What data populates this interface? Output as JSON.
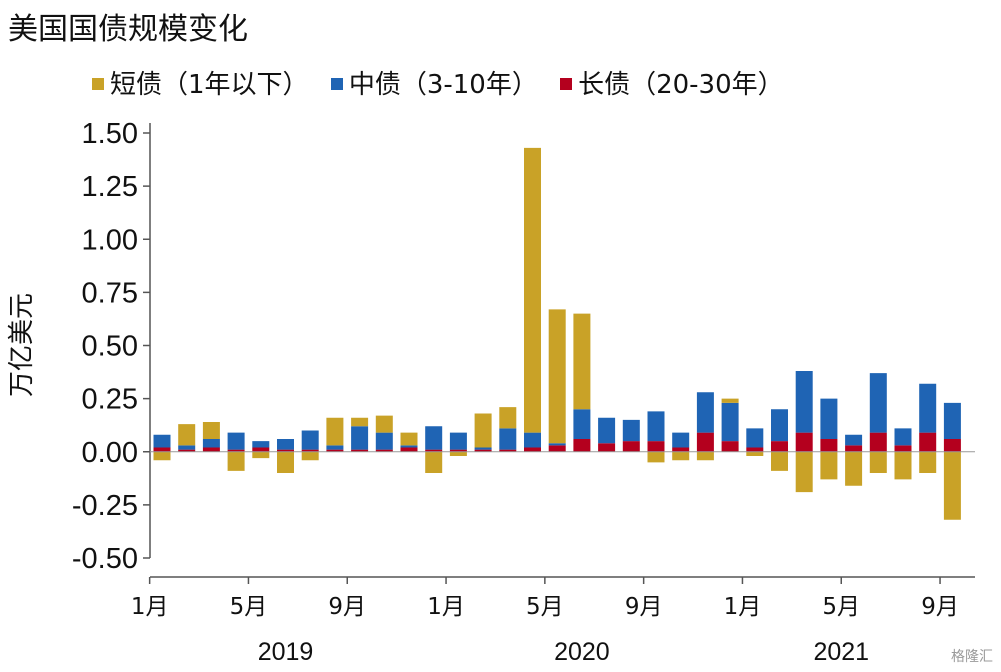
{
  "title": "美国国债规模变化",
  "watermark": "格隆汇",
  "chart_data": {
    "type": "bar",
    "stacked": true,
    "ylabel": "万亿美元",
    "ylim": [
      -0.5,
      1.5
    ],
    "yticks": [
      "1.50",
      "1.25",
      "1.00",
      "0.75",
      "0.50",
      "0.25",
      "0.00",
      "-0.25",
      "-0.50"
    ],
    "ytick_values": [
      1.5,
      1.25,
      1.0,
      0.75,
      0.5,
      0.25,
      0.0,
      -0.25,
      -0.5
    ],
    "categories": [
      "2019-01",
      "2019-02",
      "2019-03",
      "2019-04",
      "2019-05",
      "2019-06",
      "2019-07",
      "2019-08",
      "2019-09",
      "2019-10",
      "2019-11",
      "2019-12",
      "2020-01",
      "2020-02",
      "2020-03",
      "2020-04",
      "2020-05",
      "2020-06",
      "2020-07",
      "2020-08",
      "2020-09",
      "2020-10",
      "2020-11",
      "2020-12",
      "2021-01",
      "2021-02",
      "2021-03",
      "2021-04",
      "2021-05",
      "2021-06",
      "2021-07",
      "2021-08",
      "2021-09"
    ],
    "xtick_labels": [
      {
        "index": 0,
        "label": "1月"
      },
      {
        "index": 4,
        "label": "5月"
      },
      {
        "index": 8,
        "label": "9月"
      },
      {
        "index": 12,
        "label": "1月"
      },
      {
        "index": 16,
        "label": "5月"
      },
      {
        "index": 20,
        "label": "9月"
      },
      {
        "index": 24,
        "label": "1月"
      },
      {
        "index": 28,
        "label": "5月"
      },
      {
        "index": 32,
        "label": "9月"
      }
    ],
    "years": [
      {
        "label": "2019",
        "center_index": 5.5
      },
      {
        "label": "2020",
        "center_index": 17.5
      },
      {
        "label": "2021",
        "center_index": 28
      }
    ],
    "series": [
      {
        "name": "长债（20-30年）",
        "color": "#B4001E",
        "values": [
          0.02,
          0.01,
          0.02,
          0.01,
          0.02,
          0.01,
          0.01,
          0.01,
          0.01,
          0.01,
          0.02,
          0.01,
          0.01,
          0.01,
          0.01,
          0.02,
          0.03,
          0.06,
          0.04,
          0.05,
          0.05,
          0.02,
          0.09,
          0.05,
          0.02,
          0.05,
          0.09,
          0.06,
          0.03,
          0.09,
          0.03,
          0.09,
          0.06
        ]
      },
      {
        "name": "中债（3-10年）",
        "color": "#1F64B4",
        "values": [
          0.06,
          0.02,
          0.04,
          0.08,
          0.03,
          0.05,
          0.09,
          0.02,
          0.11,
          0.08,
          0.01,
          0.11,
          0.08,
          0.01,
          0.1,
          0.07,
          0.01,
          0.14,
          0.12,
          0.1,
          0.14,
          0.07,
          0.19,
          0.18,
          0.09,
          0.15,
          0.29,
          0.19,
          0.05,
          0.28,
          0.08,
          0.23,
          0.17
        ]
      },
      {
        "name": "短债（1年以下）",
        "color": "#C9A227",
        "values": [
          -0.04,
          0.1,
          0.08,
          -0.09,
          -0.03,
          -0.1,
          -0.04,
          0.13,
          0.04,
          0.08,
          0.06,
          -0.1,
          -0.02,
          0.16,
          0.1,
          1.34,
          0.63,
          0.45,
          0.0,
          0.0,
          -0.05,
          -0.04,
          -0.04,
          0.02,
          -0.02,
          -0.09,
          -0.19,
          -0.13,
          -0.16,
          -0.1,
          -0.13,
          -0.1,
          -0.32
        ]
      }
    ]
  }
}
